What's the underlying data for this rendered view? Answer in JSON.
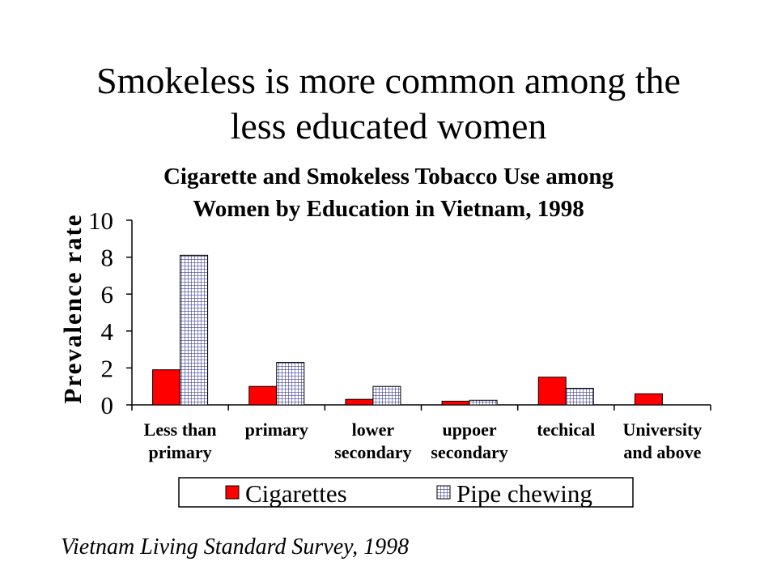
{
  "slide": {
    "title_line1": "Smokeless is more common among the",
    "title_line2": "less educated women",
    "source": "Vietnam Living Standard Survey, 1998"
  },
  "chart_data": {
    "type": "bar",
    "title_lines": [
      "Cigarette and Smokeless Tobacco Use among",
      "Women by Education in Vietnam, 1998"
    ],
    "ylabel": "Prevalence rate",
    "xlabel": "",
    "ylim": [
      0,
      10
    ],
    "yticks": [
      0,
      2,
      4,
      6,
      8,
      10
    ],
    "categories": [
      [
        "Less than",
        "primary"
      ],
      [
        "primary"
      ],
      [
        "lower",
        "secondary"
      ],
      [
        "uppoer",
        "secondary"
      ],
      [
        "techical"
      ],
      [
        "University",
        "and above"
      ]
    ],
    "series": [
      {
        "name": "Cigarettes",
        "color": "#ff0000",
        "pattern": "solid",
        "values": [
          1.9,
          1.0,
          0.3,
          0.2,
          1.5,
          0.6
        ]
      },
      {
        "name": "Pipe chewing",
        "color": "#ffffff",
        "pattern": "grid",
        "values": [
          8.1,
          2.3,
          1.0,
          0.25,
          0.9,
          null
        ]
      }
    ],
    "grid": false,
    "legend_position": "bottom"
  }
}
